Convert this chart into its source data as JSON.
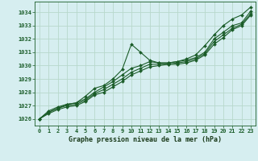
{
  "title": "Graphe pression niveau de la mer (hPa)",
  "background_color": "#d6eef0",
  "grid_color": "#b8d8cc",
  "line_color": "#1a5c28",
  "ylim": [
    1025.5,
    1034.8
  ],
  "xlim": [
    -0.5,
    23.5
  ],
  "yticks": [
    1026,
    1027,
    1028,
    1029,
    1030,
    1031,
    1032,
    1033,
    1034
  ],
  "xticks": [
    0,
    1,
    2,
    3,
    4,
    5,
    6,
    7,
    8,
    9,
    10,
    11,
    12,
    13,
    14,
    15,
    16,
    17,
    18,
    19,
    20,
    21,
    22,
    23
  ],
  "series": [
    [
      1026.0,
      1026.6,
      1026.9,
      1027.1,
      1027.2,
      1027.7,
      1028.3,
      1028.5,
      1029.0,
      1029.7,
      1031.6,
      1031.0,
      1030.4,
      1030.2,
      1030.2,
      1030.3,
      1030.5,
      1030.8,
      1031.5,
      1032.3,
      1033.0,
      1033.5,
      1033.8,
      1034.4
    ],
    [
      1026.0,
      1026.5,
      1026.8,
      1027.1,
      1027.2,
      1027.5,
      1028.0,
      1028.4,
      1028.8,
      1029.3,
      1029.8,
      1030.0,
      1030.3,
      1030.2,
      1030.2,
      1030.3,
      1030.4,
      1030.6,
      1031.0,
      1032.0,
      1032.5,
      1033.0,
      1033.2,
      1034.1
    ],
    [
      1026.0,
      1026.5,
      1026.8,
      1027.0,
      1027.1,
      1027.4,
      1027.9,
      1028.2,
      1028.6,
      1029.0,
      1029.5,
      1029.8,
      1030.1,
      1030.1,
      1030.1,
      1030.2,
      1030.3,
      1030.5,
      1030.9,
      1031.8,
      1032.3,
      1032.8,
      1033.1,
      1033.9
    ],
    [
      1026.0,
      1026.4,
      1026.7,
      1026.9,
      1027.0,
      1027.3,
      1027.8,
      1028.0,
      1028.4,
      1028.8,
      1029.3,
      1029.6,
      1029.9,
      1030.0,
      1030.1,
      1030.1,
      1030.2,
      1030.4,
      1030.8,
      1031.6,
      1032.1,
      1032.7,
      1033.0,
      1033.8
    ]
  ],
  "title_fontsize": 6.0,
  "tick_fontsize": 5.0
}
